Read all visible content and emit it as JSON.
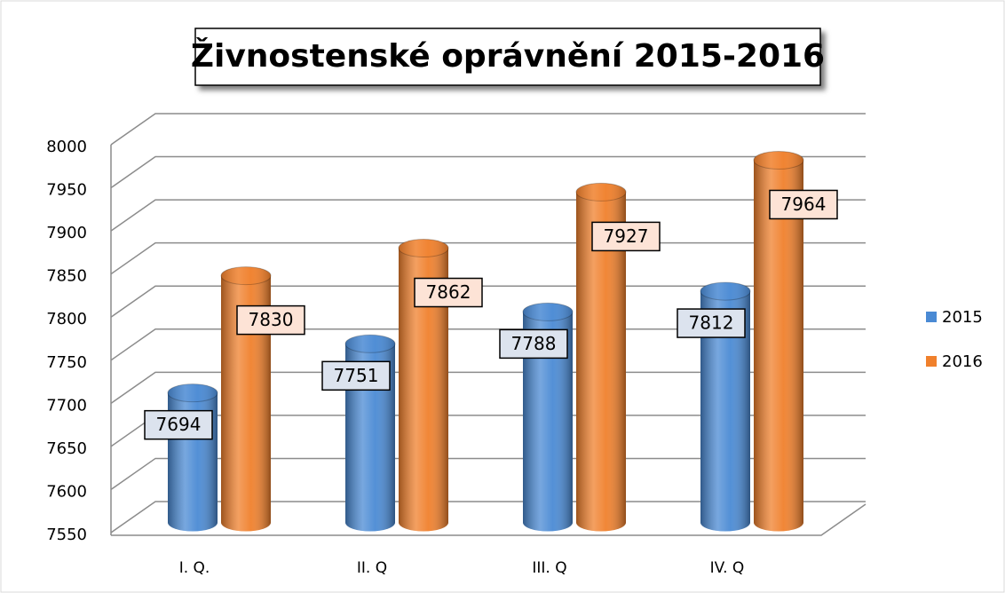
{
  "chart_data": {
    "type": "bar3d",
    "title": "Živnostenské oprávnění 2015-2016",
    "categories": [
      "I. Q.",
      "II. Q",
      "III. Q",
      "IV. Q"
    ],
    "series": [
      {
        "name": "2015",
        "color": "#4a8ad4",
        "values": [
          7694,
          7751,
          7788,
          7812
        ]
      },
      {
        "name": "2016",
        "color": "#f0802c",
        "values": [
          7830,
          7862,
          7927,
          7964
        ]
      }
    ],
    "ylim": [
      7550,
      8000
    ],
    "yticks": [
      7550,
      7600,
      7650,
      7700,
      7750,
      7800,
      7850,
      7900,
      7950,
      8000
    ],
    "grid": true,
    "legend": "right"
  }
}
